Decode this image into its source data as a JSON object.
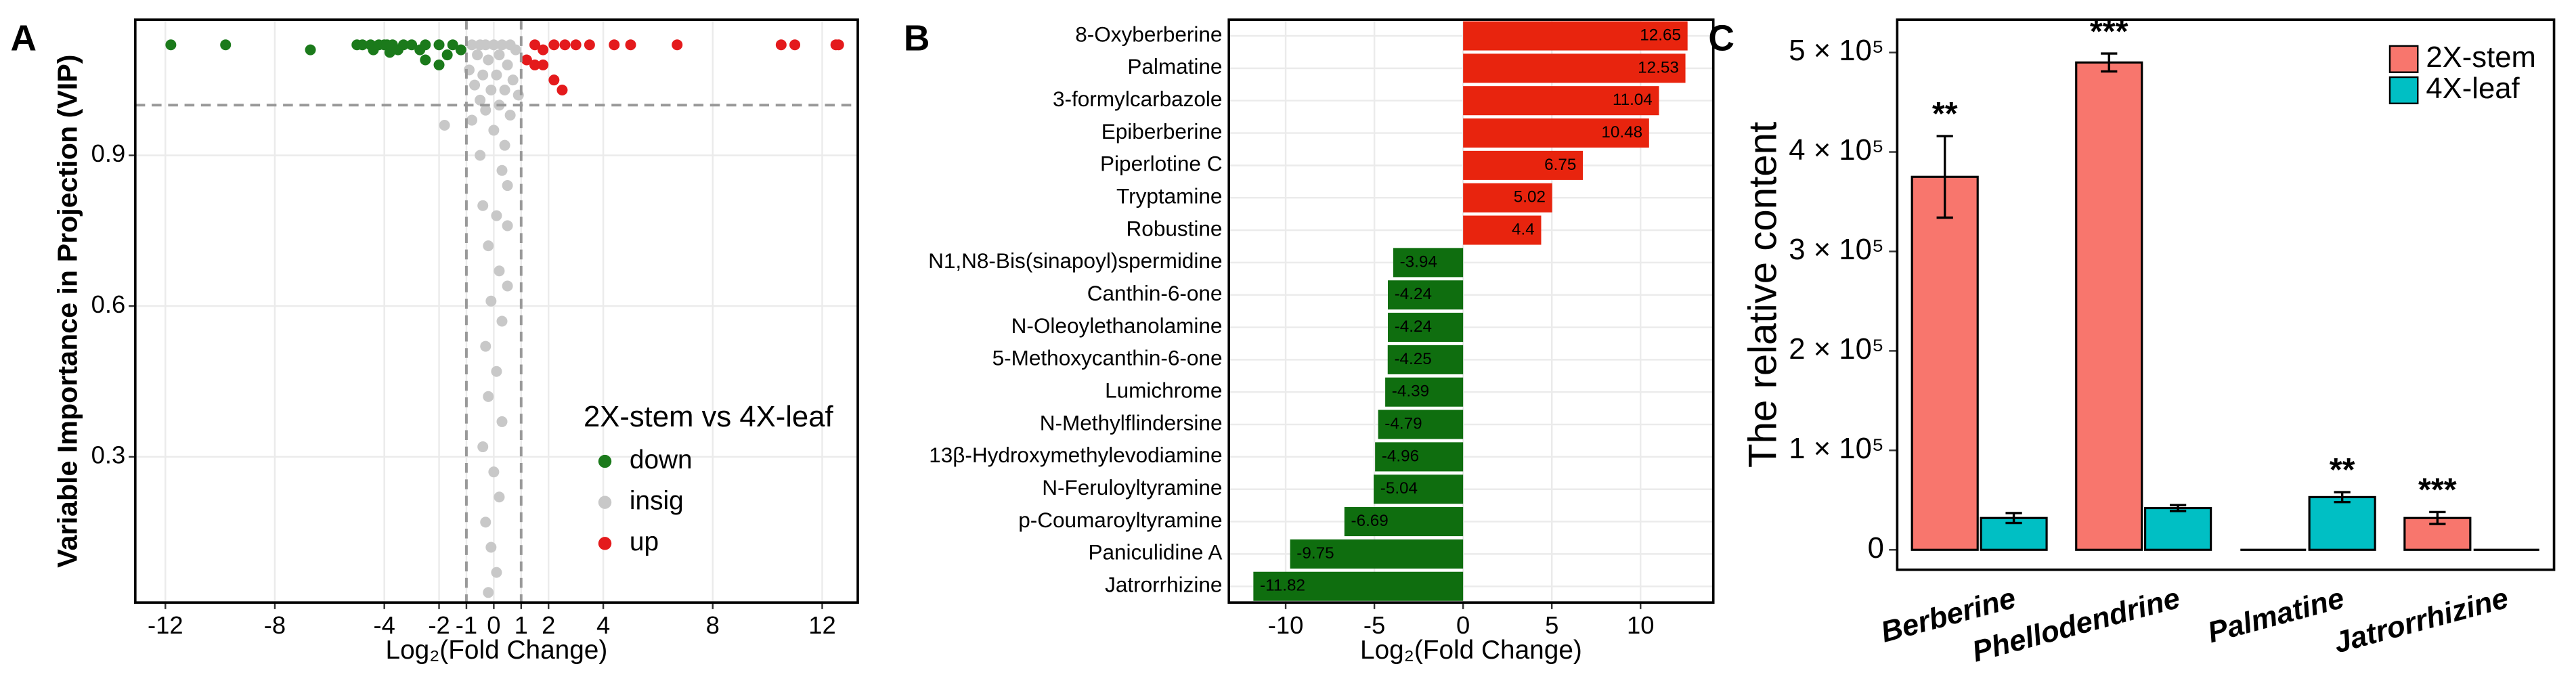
{
  "chart_data": [
    {
      "type": "scatter",
      "label": "A",
      "xlabel": "Log₂(Fold Change)",
      "ylabel": "Variable Importance in Projection (VIP)",
      "xlim": [
        -13.1,
        13.3
      ],
      "ylim": [
        0.01,
        1.17
      ],
      "xticks": [
        -12,
        -8,
        -4,
        -2,
        -1,
        0,
        1,
        2,
        4,
        8,
        12
      ],
      "yticks": [
        0.3,
        0.6,
        0.9
      ],
      "grid": true,
      "vlines": [
        -1,
        1
      ],
      "hline": 1,
      "legend_title": "2X-stem vs 4X-leaf",
      "series": [
        {
          "name": "down",
          "color": "#1b7a1b",
          "x": [
            -11.8,
            -9.8,
            -6.7,
            -5.0,
            -4.8,
            -4.5,
            -4.4,
            -4.2,
            -4.0,
            -3.9,
            -3.7,
            -3.5,
            -3.3,
            -3.0,
            -2.7,
            -2.5,
            -2.0,
            -1.5,
            -1.2,
            -3.8,
            -2.5,
            -2.0,
            -1.7
          ],
          "values": [
            1.12,
            1.12,
            1.11,
            1.12,
            1.12,
            1.12,
            1.11,
            1.12,
            1.12,
            1.12,
            1.12,
            1.11,
            1.12,
            1.12,
            1.11,
            1.12,
            1.12,
            1.12,
            1.11,
            1.105,
            1.09,
            1.08,
            1.1
          ]
        },
        {
          "name": "insig",
          "color": "#c8c8c8",
          "x": [
            -0.8,
            -0.5,
            -0.3,
            0,
            0.3,
            0.6,
            0.8,
            -0.6,
            -0.2,
            0.2,
            0.5,
            -0.9,
            -0.4,
            0.1,
            0.7,
            -0.7,
            -0.1,
            0.4,
            0.9,
            -0.5,
            0.2,
            -0.3,
            0.6,
            -1.8,
            -0.8,
            0,
            0.4,
            -0.5,
            0.3,
            0.5,
            -0.4,
            0.1,
            0.5,
            -0.2,
            0.2,
            0.5,
            -0.1,
            0.3,
            -0.3,
            0.1,
            -0.2,
            0.3,
            -0.4,
            0,
            0.2,
            -0.3,
            -0.1,
            0.1,
            -0.2
          ],
          "values": [
            1.12,
            1.12,
            1.12,
            1.12,
            1.12,
            1.12,
            1.11,
            1.1,
            1.09,
            1.1,
            1.08,
            1.07,
            1.06,
            1.06,
            1.05,
            1.04,
            1.03,
            1.03,
            1.02,
            1.01,
            1.0,
            0.99,
            0.98,
            0.96,
            0.97,
            0.95,
            0.92,
            0.9,
            0.87,
            0.84,
            0.8,
            0.78,
            0.76,
            0.72,
            0.67,
            0.64,
            0.61,
            0.57,
            0.52,
            0.47,
            0.42,
            0.37,
            0.32,
            0.27,
            0.22,
            0.17,
            0.12,
            0.07,
            0.03
          ]
        },
        {
          "name": "up",
          "color": "#e41a1c",
          "x": [
            1.5,
            1.8,
            2.2,
            2.6,
            3.0,
            3.5,
            4.4,
            5.0,
            6.7,
            10.5,
            11.0,
            12.5,
            12.6,
            1.2,
            1.5,
            1.8,
            2.2,
            2.5
          ],
          "values": [
            1.12,
            1.11,
            1.12,
            1.12,
            1.12,
            1.12,
            1.12,
            1.12,
            1.12,
            1.12,
            1.12,
            1.12,
            1.12,
            1.09,
            1.08,
            1.08,
            1.05,
            1.03
          ]
        }
      ]
    },
    {
      "type": "hbar",
      "label": "B",
      "xlabel": "Log₂(Fold Change)",
      "xlim": [
        -13.2,
        14.1
      ],
      "xticks": [
        -10,
        -5,
        0,
        5,
        10
      ],
      "grid": true,
      "color_positive": "#e8240e",
      "color_negative": "#0f6e0f",
      "categories": [
        "8-Oxyberberine",
        "Palmatine",
        "3-formylcarbazole",
        "Epiberberine",
        "Piperlotine C",
        "Tryptamine",
        "Robustine",
        "N1,N8-Bis(sinapoyl)spermidine",
        "Canthin-6-one",
        "N-Oleoylethanolamine",
        "5-Methoxycanthin-6-one",
        "Lumichrome",
        "N-Methylflindersine",
        "13β-Hydroxymethylevodiamine",
        "N-Feruloyltyramine",
        "p-Coumaroyltyramine",
        "Paniculidine A",
        "Jatrorrhizine"
      ],
      "values": [
        12.65,
        12.53,
        11.04,
        10.48,
        6.75,
        5.02,
        4.4,
        -3.94,
        -4.24,
        -4.24,
        -4.25,
        -4.39,
        -4.79,
        -4.96,
        -5.04,
        -6.69,
        -9.75,
        -11.82
      ]
    },
    {
      "type": "groupbar",
      "label": "C",
      "ylabel": "The relative content",
      "ylim": [
        -20000,
        533000
      ],
      "yticks": [
        0,
        {
          "value": 100000,
          "label": "1 × 10⁵"
        },
        {
          "value": 200000,
          "label": "2 × 10⁵"
        },
        {
          "value": 300000,
          "label": "3 × 10⁵"
        },
        {
          "value": 400000,
          "label": "4 × 10⁵"
        },
        {
          "value": 500000,
          "label": "5 × 10⁵"
        }
      ],
      "categories": [
        "Berberine",
        "Phellodendrine",
        "Palmatine",
        "Jatrorrhizine"
      ],
      "series": [
        {
          "name": "2X-stem",
          "color": "#f8766d",
          "values": [
            375000,
            490000,
            0,
            32000
          ],
          "errors": [
            41000,
            9000,
            0,
            6000
          ],
          "annotations": [
            "**",
            "***",
            null,
            "***"
          ]
        },
        {
          "name": "4X-leaf",
          "color": "#00bfc4",
          "values": [
            32000,
            42000,
            53000,
            0
          ],
          "errors": [
            5000,
            3000,
            5000,
            0
          ],
          "annotations": [
            null,
            null,
            "**",
            null
          ]
        }
      ]
    }
  ]
}
